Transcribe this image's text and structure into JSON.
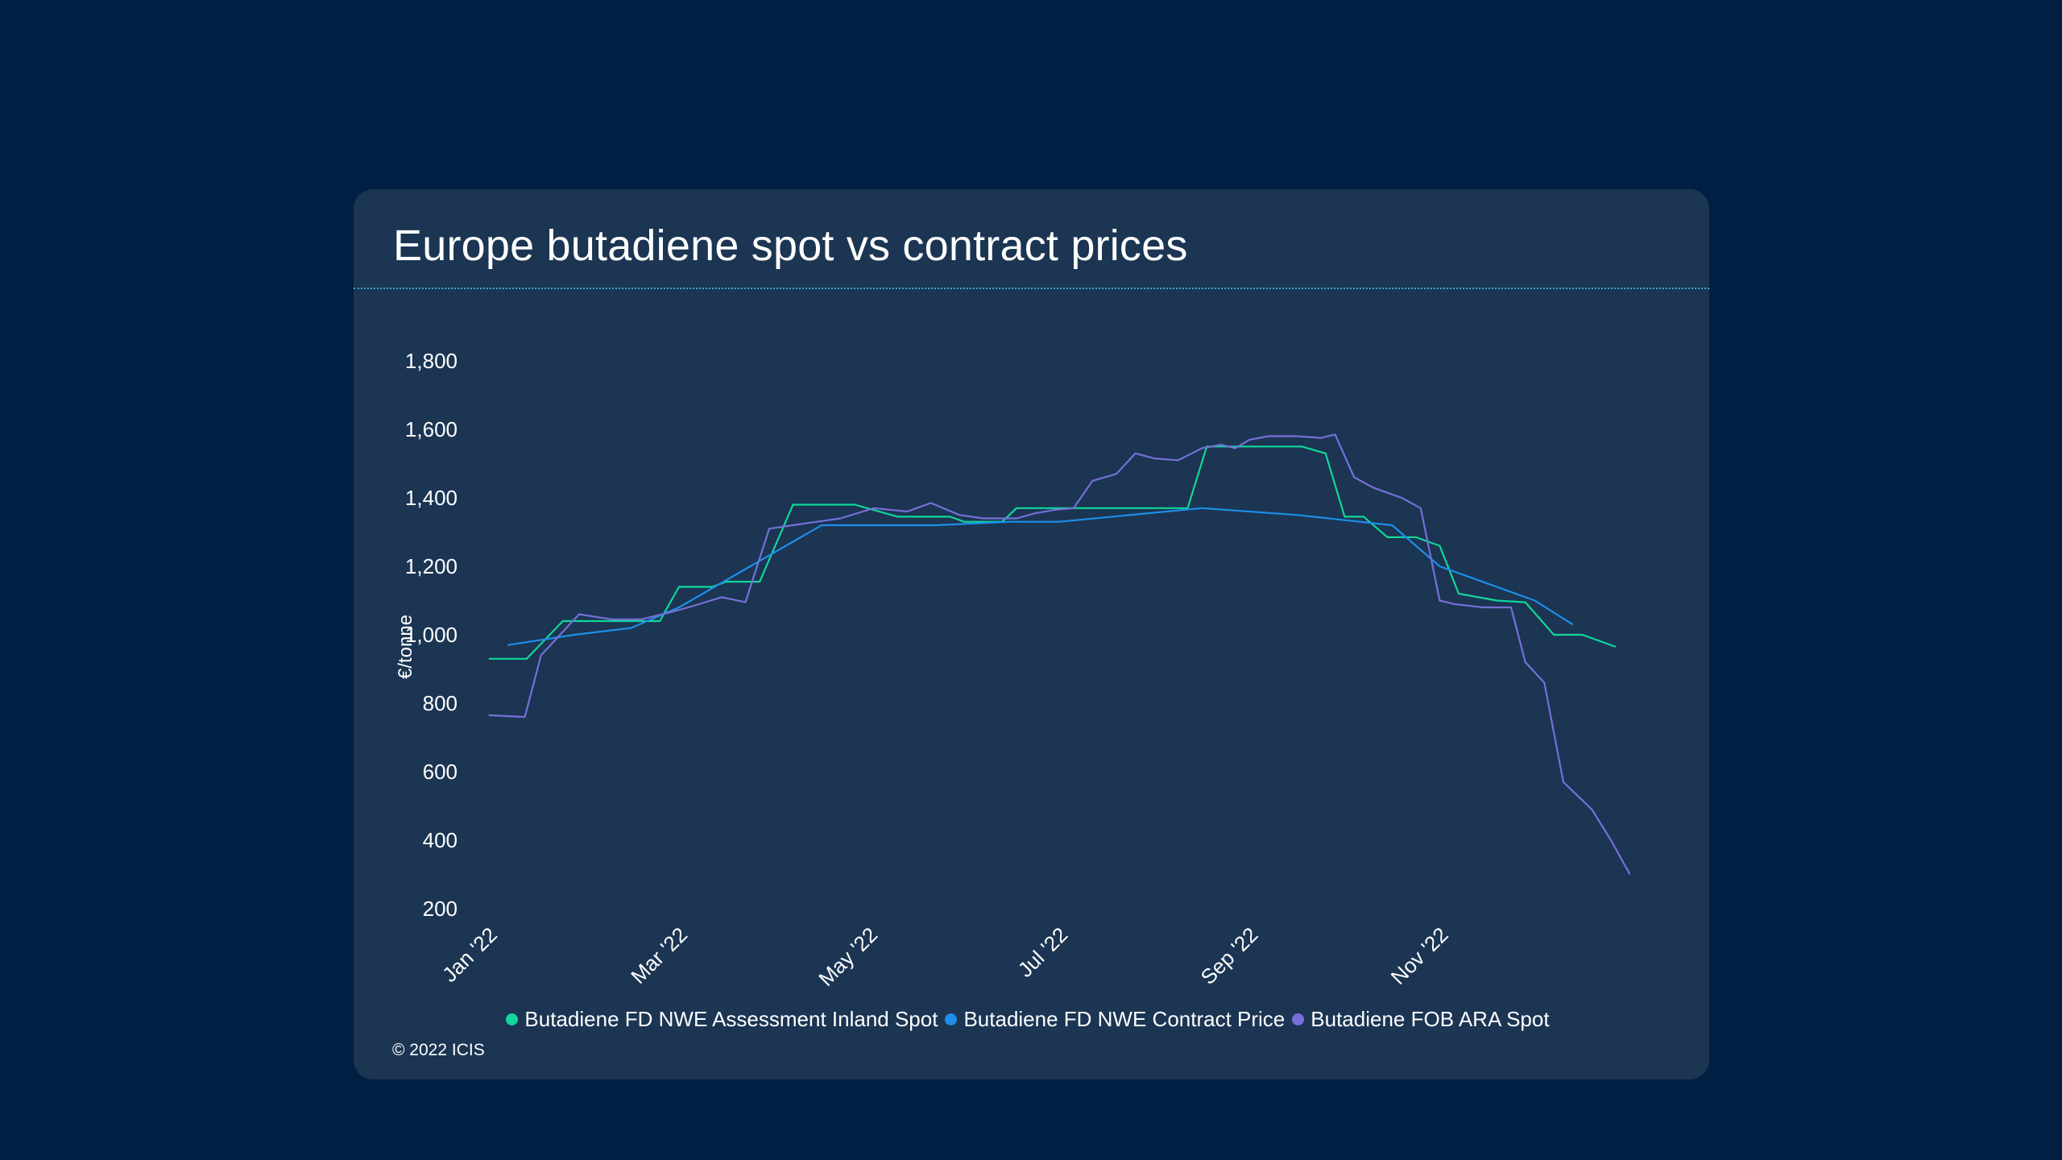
{
  "chart_data": {
    "type": "line",
    "title": "Europe butadiene spot vs contract prices",
    "xlabel": "",
    "ylabel": "€/tonne",
    "ylim": [
      200,
      1800
    ],
    "y_ticks": [
      200,
      400,
      600,
      800,
      1000,
      1200,
      1400,
      1600,
      1800
    ],
    "y_tick_labels": [
      "200",
      "400",
      "600",
      "800",
      "1,000",
      "1,200",
      "1,400",
      "1,600",
      "1,800"
    ],
    "x_ticks": [
      0,
      2,
      4,
      6,
      8,
      10
    ],
    "x_tick_labels": [
      "Jan '22",
      "Mar '22",
      "May '22",
      "Jul '22",
      "Sep '22",
      "Nov '22"
    ],
    "xlim": [
      -0.15,
      12.3
    ],
    "x_unit": "months since Jan 2022",
    "legend_position": "bottom",
    "grid": false,
    "series": [
      {
        "name": "Butadiene FD NWE Assessment Inland Spot",
        "color": "#12d69a",
        "x": [
          0,
          0.4,
          0.78,
          1.25,
          1.8,
          2.0,
          2.35,
          2.5,
          2.85,
          3.2,
          3.55,
          3.85,
          4.3,
          4.85,
          5.0,
          5.4,
          5.55,
          6.0,
          6.6,
          7.35,
          7.55,
          8.55,
          8.8,
          9.0,
          9.2,
          9.45,
          9.75,
          10.0,
          10.2,
          10.6,
          10.9,
          11.2,
          11.5,
          11.85
        ],
        "y": [
          930,
          930,
          1040,
          1040,
          1040,
          1140,
          1140,
          1155,
          1155,
          1380,
          1380,
          1380,
          1345,
          1345,
          1330,
          1330,
          1370,
          1370,
          1370,
          1370,
          1550,
          1550,
          1530,
          1345,
          1345,
          1285,
          1285,
          1260,
          1120,
          1100,
          1095,
          1000,
          1000,
          965
        ]
      },
      {
        "name": "Butadiene FD NWE Contract Price",
        "color": "#1e8ee8",
        "x": [
          0.2,
          0.9,
          1.5,
          2.0,
          3.5,
          4.7,
          5.5,
          6.0,
          7.5,
          8.5,
          9.5,
          10.0,
          10.5,
          11.0,
          11.4
        ],
        "y": [
          970,
          1000,
          1020,
          1080,
          1320,
          1320,
          1330,
          1330,
          1370,
          1350,
          1320,
          1200,
          1150,
          1100,
          1030
        ]
      },
      {
        "name": "Butadiene FOB ARA Spot",
        "color": "#7670d8",
        "x": [
          0,
          0.38,
          0.55,
          0.95,
          1.3,
          1.6,
          1.9,
          2.1,
          2.45,
          2.7,
          2.95,
          3.2,
          3.45,
          3.7,
          4.05,
          4.4,
          4.65,
          4.95,
          5.2,
          5.55,
          5.75,
          5.95,
          6.15,
          6.35,
          6.6,
          6.8,
          7.0,
          7.25,
          7.5,
          7.7,
          7.85,
          8.0,
          8.2,
          8.5,
          8.75,
          8.9,
          9.1,
          9.3,
          9.6,
          9.8,
          10.0,
          10.15,
          10.45,
          10.75,
          10.9,
          11.1,
          11.3,
          11.6,
          11.8,
          12.0
        ],
        "y": [
          765,
          760,
          940,
          1060,
          1045,
          1045,
          1065,
          1080,
          1110,
          1095,
          1310,
          1320,
          1330,
          1340,
          1370,
          1360,
          1385,
          1350,
          1340,
          1340,
          1355,
          1365,
          1370,
          1450,
          1470,
          1530,
          1515,
          1510,
          1545,
          1555,
          1545,
          1570,
          1580,
          1580,
          1575,
          1585,
          1460,
          1430,
          1400,
          1370,
          1100,
          1090,
          1080,
          1080,
          920,
          860,
          570,
          490,
          400,
          300
        ]
      }
    ]
  },
  "copyright": "© 2022 ICIS"
}
